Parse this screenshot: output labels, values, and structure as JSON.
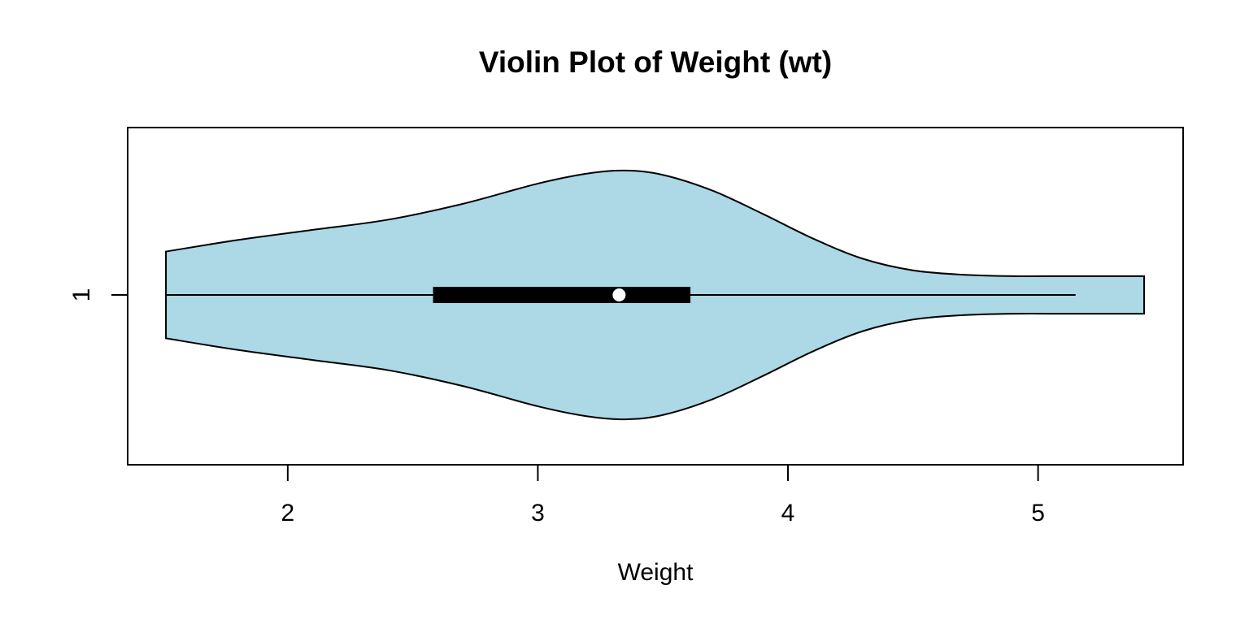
{
  "chart_data": {
    "type": "violin",
    "title": "Violin Plot of Weight (wt)",
    "xlabel": "Weight",
    "ylabel": "",
    "orientation": "horizontal",
    "xlim": [
      1.36,
      5.58
    ],
    "x_ticks": [
      2,
      3,
      4,
      5
    ],
    "y_ticks": [
      "1"
    ],
    "fill_color": "#ADD8E6",
    "grid": false,
    "series": [
      {
        "label": "1",
        "min": 1.513,
        "q1": 2.581,
        "median": 3.325,
        "q3": 3.61,
        "max": 5.25,
        "outlier_extent": [
          1.513,
          5.424
        ],
        "density": {
          "x": [
            1.513,
            1.8,
            2.1,
            2.4,
            2.7,
            3.0,
            3.2,
            3.35,
            3.5,
            3.7,
            3.9,
            4.1,
            4.3,
            4.5,
            4.7,
            4.9,
            5.1,
            5.3,
            5.424
          ],
          "half_width": [
            0.3,
            0.38,
            0.45,
            0.52,
            0.63,
            0.77,
            0.84,
            0.86,
            0.83,
            0.72,
            0.56,
            0.39,
            0.25,
            0.17,
            0.14,
            0.13,
            0.13,
            0.13,
            0.13
          ]
        }
      }
    ]
  }
}
